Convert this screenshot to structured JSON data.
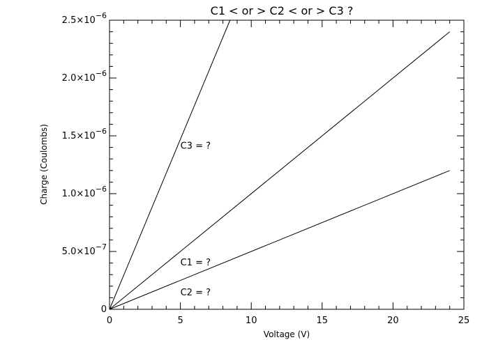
{
  "chart_data": {
    "type": "line",
    "title": "C1 < or > C2 < or > C3 ?",
    "xlabel": "Voltage (V)",
    "ylabel": "Charge (Coulombs)",
    "xlim": [
      0,
      25
    ],
    "ylim": [
      0,
      2.5e-06
    ],
    "grid": false,
    "xticks": [
      {
        "value": 0,
        "label": "0"
      },
      {
        "value": 5,
        "label": "5"
      },
      {
        "value": 10,
        "label": "10"
      },
      {
        "value": 15,
        "label": "15"
      },
      {
        "value": 20,
        "label": "20"
      },
      {
        "value": 25,
        "label": "25"
      }
    ],
    "yticks": [
      {
        "value": 0,
        "mantissa": "0",
        "exponent": ""
      },
      {
        "value": 5e-07,
        "mantissa": "5.0×10",
        "exponent": "−7"
      },
      {
        "value": 1e-06,
        "mantissa": "1.0×10",
        "exponent": "−6"
      },
      {
        "value": 1.5e-06,
        "mantissa": "1.5×10",
        "exponent": "−6"
      },
      {
        "value": 2e-06,
        "mantissa": "2.0×10",
        "exponent": "−6"
      },
      {
        "value": 2.5e-06,
        "mantissa": "2.5×10",
        "exponent": "−6"
      }
    ],
    "series": [
      {
        "x": [
          0,
          8.5
        ],
        "y": [
          0,
          2.5e-06
        ]
      },
      {
        "x": [
          0,
          24
        ],
        "y": [
          0,
          2.4e-06
        ]
      },
      {
        "x": [
          0,
          24
        ],
        "y": [
          0,
          1.2e-06
        ]
      }
    ],
    "annotations": [
      {
        "text": "C3 = ?",
        "x": 5,
        "y": 1.42e-06
      },
      {
        "text": "C1 = ?",
        "x": 5,
        "y": 4.1e-07
      },
      {
        "text": "C2 = ?",
        "x": 5,
        "y": 1.5e-07
      }
    ]
  }
}
